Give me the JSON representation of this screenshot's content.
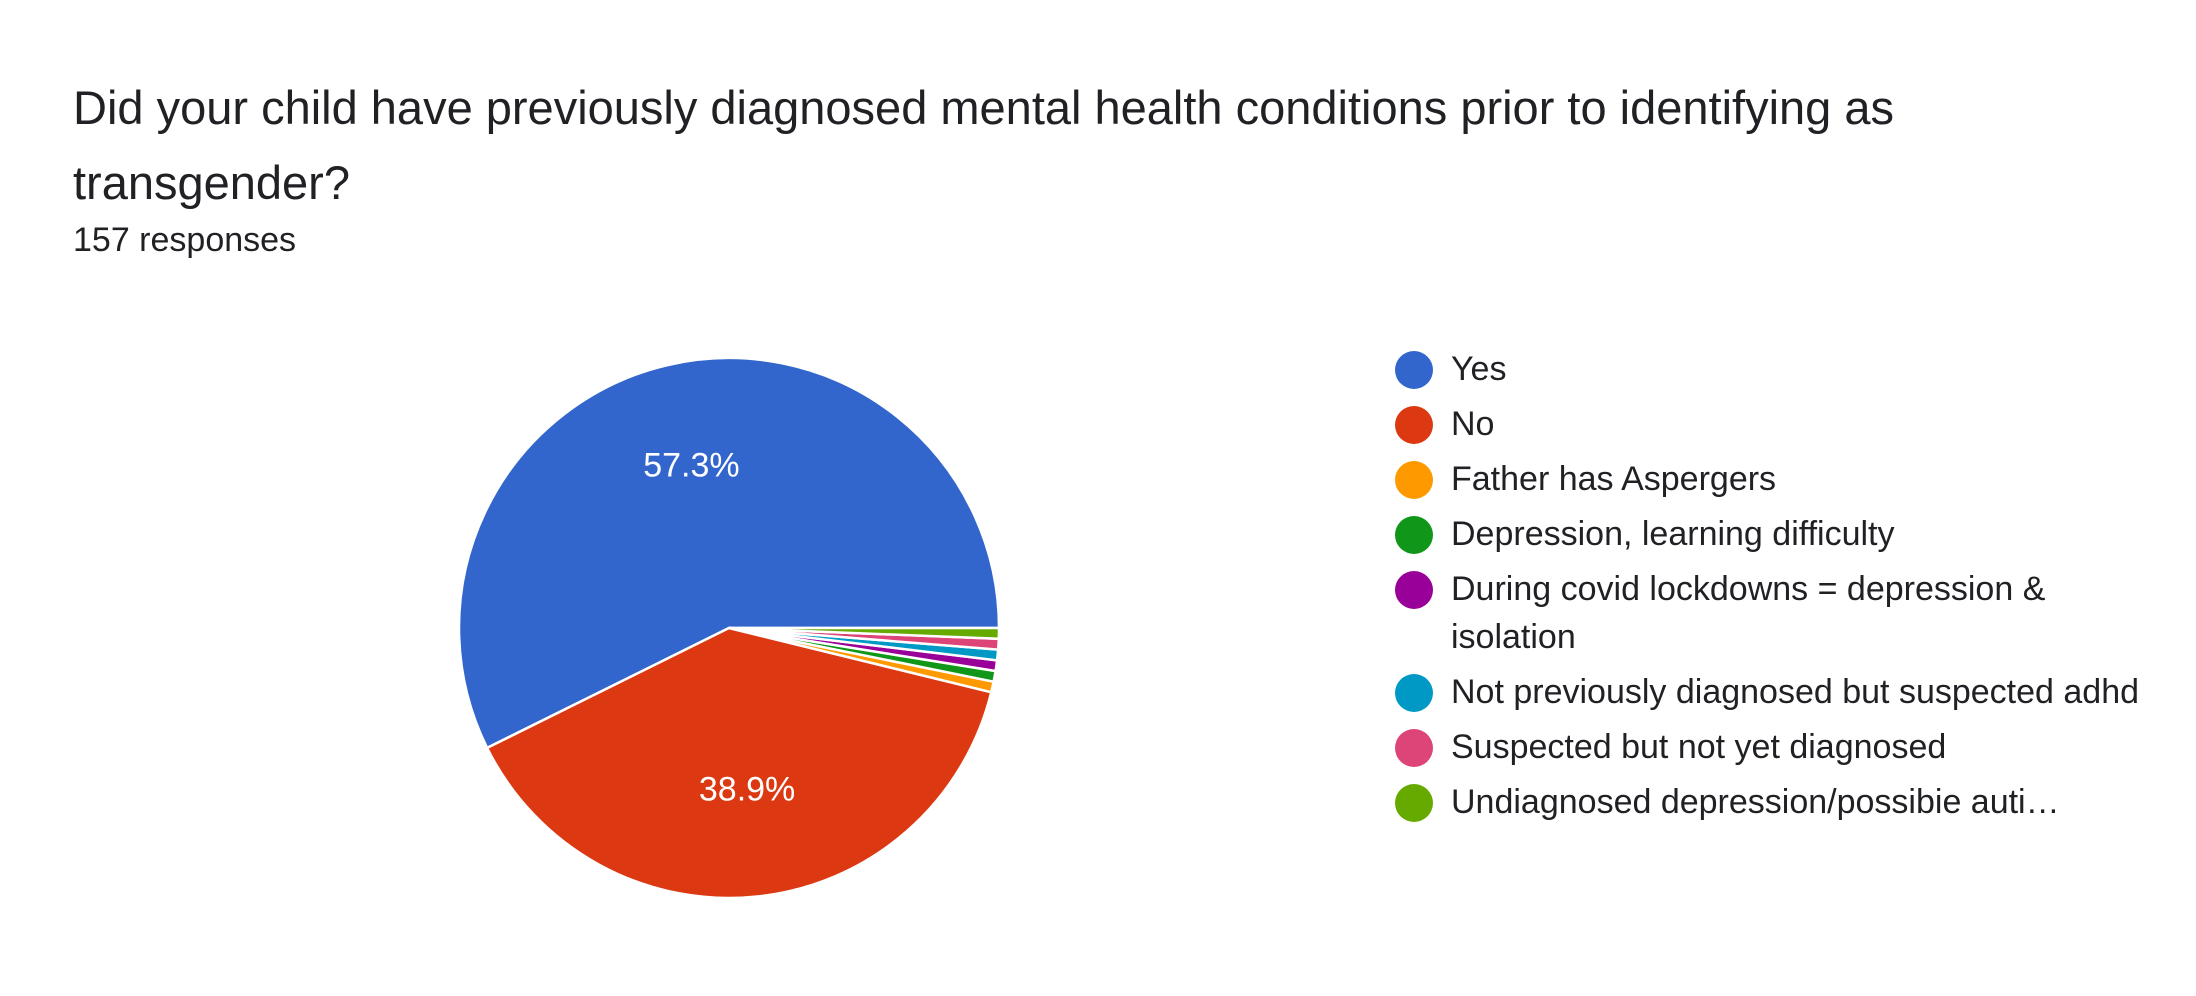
{
  "question": {
    "title": "Did your child have previously diagnosed mental health conditions prior to identifying as transgender?",
    "responses": "157 responses"
  },
  "chart_data": {
    "type": "pie",
    "title": "Did your child have previously diagnosed mental health conditions prior to identifying as transgender?",
    "total_responses": 157,
    "legend_position": "right",
    "slices": [
      {
        "label": "Yes",
        "count": 90,
        "percent": 57.3,
        "color": "#3366cc",
        "show_label": true
      },
      {
        "label": "No",
        "count": 61,
        "percent": 38.9,
        "color": "#dc3912",
        "show_label": true
      },
      {
        "label": "Father has Aspergers",
        "count": 1,
        "percent": 0.6,
        "color": "#ff9900",
        "show_label": false
      },
      {
        "label": "Depression, learning difficulty",
        "count": 1,
        "percent": 0.6,
        "color": "#109618",
        "show_label": false
      },
      {
        "label": "During covid lockdowns = depression & isolation",
        "count": 1,
        "percent": 0.6,
        "color": "#990099",
        "show_label": false
      },
      {
        "label": "Not previously diagnosed but suspected adhd",
        "count": 1,
        "percent": 0.6,
        "color": "#0099c6",
        "show_label": false
      },
      {
        "label": "Suspected but not yet diagnosed",
        "count": 1,
        "percent": 0.6,
        "color": "#dd4477",
        "show_label": false
      },
      {
        "label": "Undiagnosed depression/possibie auti…",
        "count": 1,
        "percent": 0.6,
        "color": "#66aa00",
        "show_label": false
      }
    ]
  }
}
